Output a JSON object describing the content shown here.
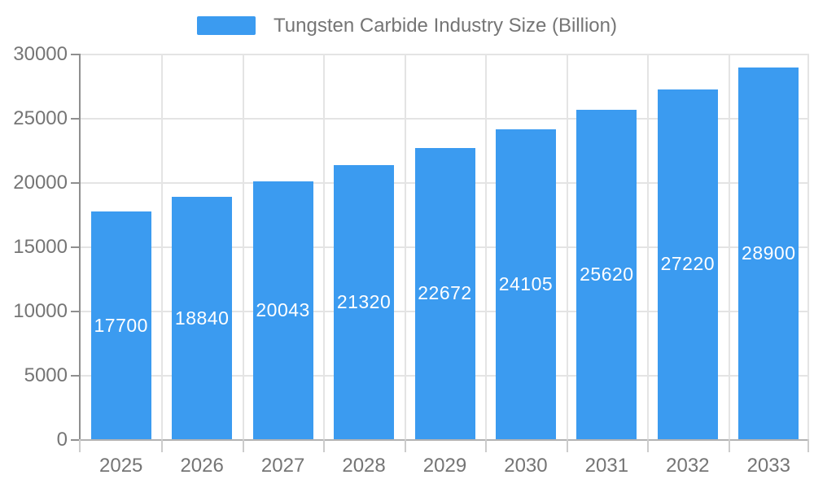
{
  "chart_data": {
    "type": "bar",
    "title": "Tungsten Carbide Industry Size (Billion)",
    "legend": {
      "label": "Tungsten Carbide Industry Size (Billion)",
      "position": "top-center"
    },
    "categories": [
      "2025",
      "2026",
      "2027",
      "2028",
      "2029",
      "2030",
      "2031",
      "2032",
      "2033"
    ],
    "values": [
      17700,
      18840,
      20043,
      21320,
      22672,
      24105,
      25620,
      27220,
      28900
    ],
    "xlabel": "",
    "ylabel": "",
    "ylim": [
      0,
      30000
    ],
    "yticks": [
      0,
      5000,
      10000,
      15000,
      20000,
      25000,
      30000
    ],
    "grid": true,
    "bar_labels_inside": true,
    "colors": {
      "bar": "#3b9bf0",
      "bar_label": "#ffffff",
      "axis_label": "#757575"
    }
  }
}
